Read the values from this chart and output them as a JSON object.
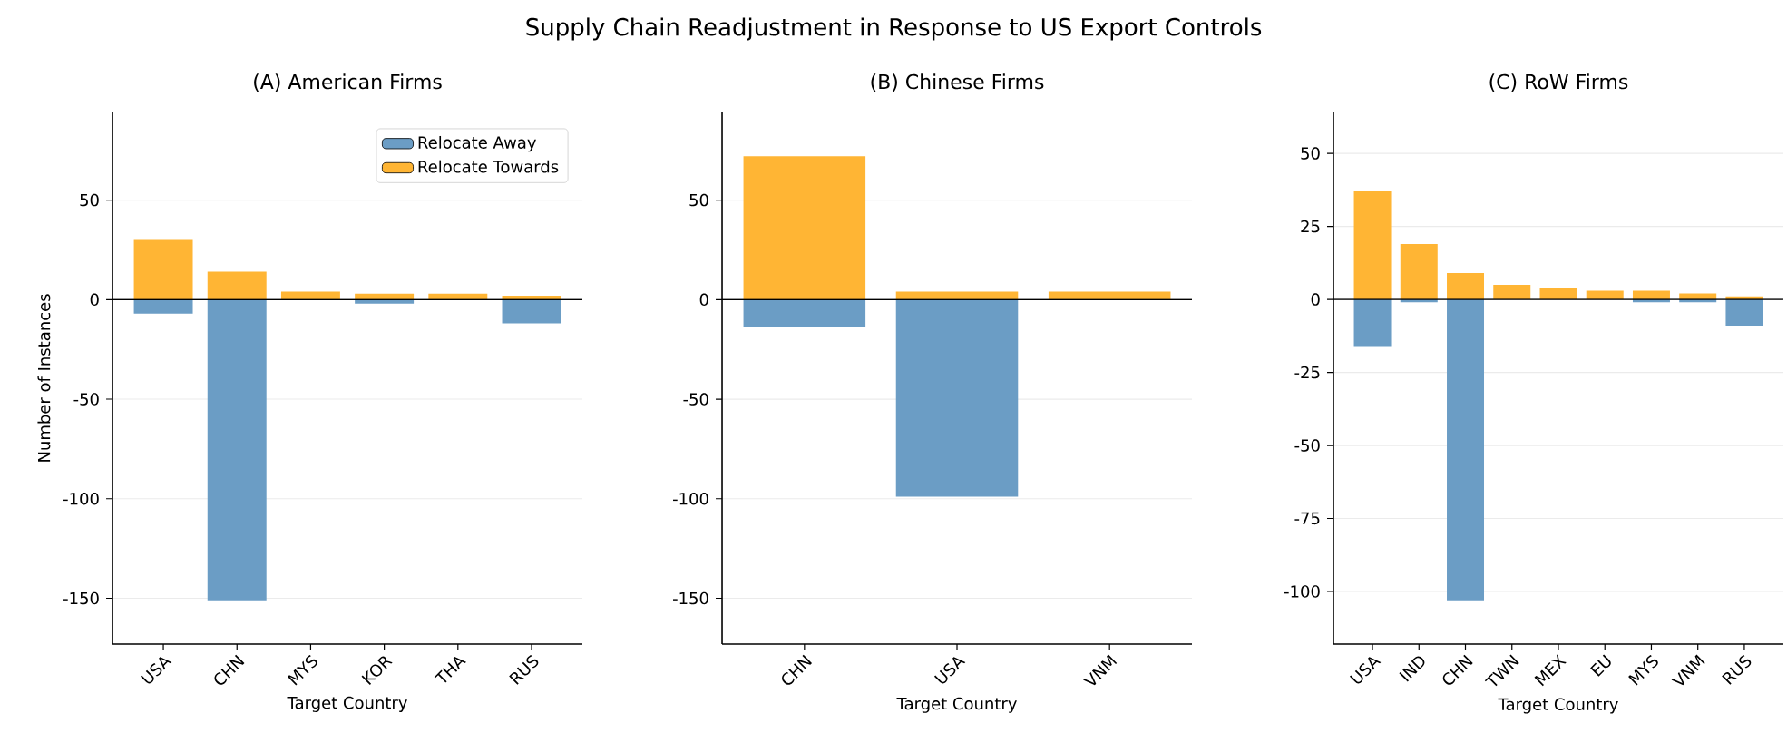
{
  "chart_data": [
    {
      "type": "other",
      "title": "Supply Chain Readjustment in Response to US Export Controls"
    },
    {
      "type": "bar",
      "title": "(A) American Firms",
      "xlabel": "Target Country",
      "ylabel": "Number of Instances",
      "categories": [
        "USA",
        "CHN",
        "MYS",
        "KOR",
        "THA",
        "RUS"
      ],
      "series": [
        {
          "name": "Relocate Away",
          "color": "#6b9dc5",
          "values": [
            -7,
            -151,
            0,
            -2,
            0,
            -12
          ]
        },
        {
          "name": "Relocate Towards",
          "color": "#ffb534",
          "values": [
            30,
            14,
            4,
            3,
            3,
            2
          ]
        }
      ],
      "ylim": [
        -173,
        94
      ],
      "yticks": [
        -150,
        -100,
        -50,
        0,
        50
      ],
      "grid": "y",
      "legend": "top right",
      "stacked": true,
      "ref_lines": [
        {
          "axis": "y",
          "value": 0,
          "color": "#000000"
        }
      ]
    },
    {
      "type": "bar",
      "title": "(B) Chinese Firms",
      "xlabel": "Target Country",
      "categories": [
        "CHN",
        "USA",
        "VNM"
      ],
      "series": [
        {
          "color": "#6b9dc5",
          "values": [
            -14,
            -99,
            0
          ]
        },
        {
          "color": "#ffb534",
          "values": [
            72,
            4,
            4
          ]
        }
      ],
      "ylim": [
        -173,
        94
      ],
      "yticks": [
        -150,
        -100,
        -50,
        0,
        50
      ],
      "grid": "y",
      "stacked": true,
      "ref_lines": [
        {
          "axis": "y",
          "value": 0,
          "color": "#000000"
        }
      ]
    },
    {
      "type": "bar",
      "title": "(C) RoW Firms",
      "xlabel": "Target Country",
      "categories": [
        "USA",
        "IND",
        "CHN",
        "TWN",
        "MEX",
        "EU",
        "MYS",
        "VNM",
        "RUS"
      ],
      "series": [
        {
          "color": "#6b9dc5",
          "values": [
            -16,
            -1,
            -103,
            0,
            0,
            0,
            -1,
            -1,
            -9
          ]
        },
        {
          "color": "#ffb534",
          "values": [
            37,
            19,
            9,
            5,
            4,
            3,
            3,
            2,
            1
          ]
        }
      ],
      "ylim": [
        -118,
        64
      ],
      "yticks": [
        -100,
        -75,
        -50,
        -25,
        0,
        25,
        50
      ],
      "grid": "y",
      "stacked": true,
      "ref_lines": [
        {
          "axis": "y",
          "value": 0,
          "color": "#000000"
        }
      ]
    }
  ]
}
